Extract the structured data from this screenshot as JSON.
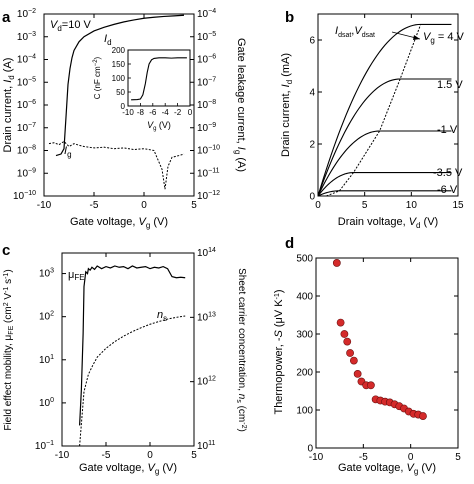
{
  "chart_data": [
    {
      "panel": "a",
      "type": "line",
      "xlabel": "Gate voltage, V_g (V)",
      "ylabel_left": "Drain current, I_d (A)",
      "ylabel_right": "Gate leakage current, I_g (A)",
      "annotation": "V_d=10 V",
      "xlim": [
        -10,
        5
      ],
      "x_ticks": [
        -10,
        -5,
        0,
        5
      ],
      "yscale": "log",
      "ylim_left": [
        1e-10,
        0.01
      ],
      "y_ticks_left": [
        "10^-10",
        "10^-9",
        "10^-8",
        "10^-7",
        "10^-6",
        "10^-5",
        "10^-4",
        "10^-3",
        "10^-2"
      ],
      "ylim_right": [
        1e-12,
        0.0001
      ],
      "y_ticks_right": [
        "10^-12",
        "10^-11",
        "10^-10",
        "10^-9",
        "10^-8",
        "10^-7",
        "10^-6",
        "10^-5",
        "10^-4"
      ],
      "series": [
        {
          "name": "I_d",
          "style": "solid",
          "x": [
            -8.8,
            -8.3,
            -8.0,
            -7.8,
            -7.6,
            -7.4,
            -7.2,
            -7.0,
            -6.5,
            -6.0,
            -5.0,
            -4.0,
            -3.0,
            -2.0,
            -1.0,
            0.0,
            1.0,
            2.0,
            3.0,
            4.0
          ],
          "y": [
            6e-09,
            7e-09,
            1.2e-08,
            3e-07,
            8e-06,
            4e-05,
            0.00012,
            0.00025,
            0.0006,
            0.001,
            0.0018,
            0.0026,
            0.0035,
            0.0045,
            0.0055,
            0.0065,
            0.0072,
            0.0078,
            0.0083,
            0.0088
          ]
        },
        {
          "name": "I_g",
          "style": "dotted",
          "axis": "right",
          "x": [
            -9.5,
            -9.0,
            -8.5,
            -8.0,
            -7.5,
            -7.0,
            -6.5,
            -6.0,
            -5.0,
            -4.0,
            -3.0,
            -2.0,
            -1.0,
            0.0,
            1.0,
            1.8,
            2.1,
            2.4,
            2.8,
            3.5,
            4.0
          ],
          "y": [
            2e-10,
            2.2e-10,
            1.8e-10,
            2.5e-10,
            1.5e-10,
            2e-10,
            1.7e-10,
            1.5e-10,
            1.3e-10,
            1.4e-10,
            1.2e-10,
            1.3e-10,
            1.1e-10,
            1.2e-10,
            1e-10,
            1.5e-11,
            2e-12,
            2e-11,
            5e-11,
            6e-11,
            7e-11
          ]
        }
      ],
      "labels": [
        "I_d",
        "I_g"
      ],
      "inset": {
        "type": "line",
        "xlabel": "V_g (V)",
        "ylabel": "C (nF cm^-2)",
        "xlim": [
          -10,
          0
        ],
        "x_ticks": [
          -10,
          -8,
          -6,
          -4,
          -2,
          0
        ],
        "ylim": [
          0,
          200
        ],
        "y_ticks": [
          0,
          50,
          100,
          150,
          200
        ],
        "x": [
          -9.5,
          -8.5,
          -8.0,
          -7.6,
          -7.2,
          -6.9,
          -6.6,
          -6.2,
          -5.8,
          -5.0,
          -4.0,
          -3.0,
          -2.0,
          -1.0,
          -0.5
        ],
        "y": [
          22,
          23,
          25,
          40,
          80,
          120,
          150,
          165,
          170,
          172,
          172,
          171,
          172,
          172,
          172
        ]
      }
    },
    {
      "panel": "b",
      "type": "line",
      "xlabel": "Drain voltage, V_d (V)",
      "ylabel": "Drain current, I_d (mA)",
      "xlim": [
        0,
        15
      ],
      "x_ticks": [
        0,
        5,
        10,
        15
      ],
      "ylim": [
        0,
        7
      ],
      "y_ticks": [
        0,
        2,
        4,
        6
      ],
      "series_labels": [
        "V_g = 4 V",
        "1.5 V",
        "-1 V",
        "-3.5 V",
        "-6 V"
      ],
      "annotation": "I_dsat,V_dsat",
      "sat_currents": [
        6.6,
        4.5,
        2.5,
        0.9,
        0.2
      ],
      "sat_voltages": [
        11,
        8.8,
        6.6,
        3.8,
        2.3
      ],
      "dotted_locus": {
        "x": [
          2.3,
          3.8,
          6.6,
          8.8,
          11
        ],
        "y": [
          0.2,
          0.9,
          2.5,
          4.5,
          6.6
        ]
      }
    },
    {
      "panel": "c",
      "type": "line",
      "xlabel": "Gate voltage, V_g (V)",
      "ylabel_left": "Field effect mobility, μ_FE (cm^2 V^-1 s^-1)",
      "ylabel_right": "Sheet carrier concentration, n_s (cm^-2)",
      "xlim": [
        -10,
        5
      ],
      "x_ticks": [
        -10,
        -5,
        0,
        5
      ],
      "yscale": "log",
      "ylim_left": [
        0.1,
        3000
      ],
      "y_ticks_left": [
        "10^-1",
        "10^0",
        "10^1",
        "10^2",
        "10^3"
      ],
      "ylim_right": [
        100000000000.0,
        100000000000000.0
      ],
      "y_ticks_right": [
        "10^11",
        "10^12",
        "10^13",
        "10^14"
      ],
      "series": [
        {
          "name": "μ_FE",
          "style": "solid",
          "x": [
            -8.0,
            -7.8,
            -7.6,
            -7.5,
            -7.3,
            -7.1,
            -7.0,
            -6.8,
            -6.6,
            -6.3,
            -6.0,
            -5.5,
            -5.0,
            -4.5,
            -4.0,
            -3.5,
            -3.0,
            -2.5,
            -2.0,
            -1.5,
            -1.0,
            -0.5,
            0.0,
            0.5,
            1.0,
            1.5,
            2.0,
            2.5,
            3.0,
            3.5,
            4.0
          ],
          "y": [
            0.3,
            2,
            40,
            500,
            1100,
            1000,
            1300,
            1200,
            1400,
            1250,
            1500,
            1300,
            1450,
            1350,
            1500,
            1400,
            1450,
            1300,
            1500,
            1350,
            1400,
            1450,
            1300,
            1400,
            1350,
            1450,
            1300,
            850,
            800,
            820,
            800
          ]
        },
        {
          "name": "n_s",
          "style": "dotted",
          "axis": "right",
          "x": [
            -8.0,
            -7.5,
            -7.0,
            -6.5,
            -6.0,
            -5.0,
            -4.0,
            -3.0,
            -2.0,
            -1.0,
            0.0,
            1.0,
            2.0,
            3.0,
            4.0
          ],
          "y": [
            100000000000.0,
            700000000000.0,
            1300000000000.0,
            1800000000000.0,
            2400000000000.0,
            3300000000000.0,
            4200000000000.0,
            5100000000000.0,
            6000000000000.0,
            6900000000000.0,
            7800000000000.0,
            8600000000000.0,
            9400000000000.0,
            10000000000000.0,
            10500000000000.0
          ]
        }
      ],
      "labels": [
        "μ_FE",
        "n_s"
      ]
    },
    {
      "panel": "d",
      "type": "scatter",
      "xlabel": "Gate voltage, V_g (V)",
      "ylabel": "Thermopower, -S (μV K^-1)",
      "xlim": [
        -10,
        5
      ],
      "x_ticks": [
        -10,
        -5,
        0,
        5
      ],
      "ylim": [
        0,
        500
      ],
      "y_ticks": [
        0,
        100,
        200,
        300,
        400,
        500
      ],
      "x": [
        -7.8,
        -7.4,
        -7.0,
        -6.7,
        -6.4,
        -6.0,
        -5.6,
        -5.2,
        -4.7,
        -4.2,
        -3.7,
        -3.2,
        -2.7,
        -2.2,
        -1.7,
        -1.2,
        -0.7,
        -0.2,
        0.3,
        0.8,
        1.3
      ],
      "y": [
        487,
        330,
        300,
        280,
        250,
        230,
        195,
        175,
        165,
        165,
        128,
        125,
        122,
        120,
        115,
        110,
        104,
        96,
        90,
        88,
        84
      ],
      "color": "#d42a2a"
    }
  ],
  "panel_letters": [
    "a",
    "b",
    "c",
    "d"
  ],
  "labels": {
    "a_ann_vd": "V",
    "a_ann_vd_sub": "d",
    "a_ann_vd_rest": "=10 V",
    "a_id": "I",
    "a_id_sub": "d",
    "a_ig": "I",
    "a_ig_sub": "g",
    "a_x_main": "Gate voltage, ",
    "a_x_var": "V",
    "a_x_sub": "g",
    "a_x_unit": " (V)",
    "a_yl_main": "Drain current, ",
    "a_yl_var": "I",
    "a_yl_sub": "d",
    "a_yl_unit": " (A)",
    "a_yr_main": "Gate leakage current, ",
    "a_yr_var": "I",
    "a_yr_sub": "g",
    "a_yr_unit": " (A)",
    "inset_y": "C (nF cm",
    "inset_y_sup": "−2",
    "inset_y_end": ")",
    "inset_x": "V",
    "inset_x_sub": "g",
    "inset_x_unit": " (V)",
    "b_vg": "V",
    "b_vg_sub": "g",
    "b_vg_rest": " = 4 V",
    "b_15": "1.5 V",
    "b_m1": "-1 V",
    "b_m35": "-3.5 V",
    "b_m6": "-6 V",
    "b_idsat": "I",
    "b_idsat_sub": "dsat",
    "b_comma": ",",
    "b_vdsat": "V",
    "b_vdsat_sub": "dsat",
    "b_x_main": "Drain voltage, ",
    "b_x_var": "V",
    "b_x_sub": "d",
    "b_x_unit": " (V)",
    "b_y_main": "Drain current, ",
    "b_y_var": "I",
    "b_y_sub": "d",
    "b_y_unit": " (mA)",
    "c_mu": "μ",
    "c_mu_sub": "FE",
    "c_ns": "n",
    "c_ns_sub": "s",
    "c_x_main": "Gate voltage, ",
    "c_x_var": "V",
    "c_x_sub": "g",
    "c_x_unit": " (V)",
    "c_yl": "Field effect mobility, μ",
    "c_yl_sub": "FE",
    "c_yl_unit": " (cm",
    "c_yl_sup": "2",
    "c_yl_mid": " V",
    "c_yl_sup2": "-1",
    "c_yl_mid2": " s",
    "c_yl_sup3": "-1",
    "c_yl_end": ")",
    "c_yr_main": "Sheet carrier concentration, ",
    "c_yr_var": "n",
    "c_yr_sub": "s",
    "c_yr_unit": " (cm",
    "c_yr_sup": "-2",
    "c_yr_end": ")",
    "d_x_main": "Gate voltage, ",
    "d_x_var": "V",
    "d_x_sub": "g",
    "d_x_unit": " (V)",
    "d_y_main": "Thermopower, -",
    "d_y_var": "S",
    "d_y_unit": " (μV K",
    "d_y_sup": "-1",
    "d_y_end": ")"
  }
}
